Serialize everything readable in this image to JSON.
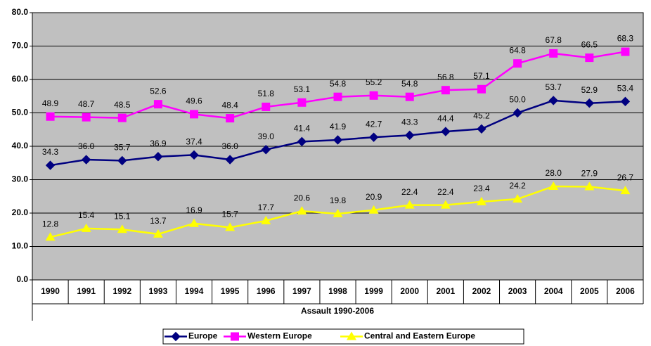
{
  "chart_data": {
    "type": "line",
    "x_label": "Assault 1990-2006",
    "categories": [
      "1990",
      "1991",
      "1992",
      "1993",
      "1994",
      "1995",
      "1996",
      "1997",
      "1998",
      "1999",
      "2000",
      "2001",
      "2002",
      "2003",
      "2004",
      "2005",
      "2006"
    ],
    "series": [
      {
        "name": "Europe",
        "color": "#000080",
        "marker": "diamond",
        "values": [
          34.3,
          36.0,
          35.7,
          36.9,
          37.4,
          36.0,
          39.0,
          41.4,
          41.9,
          42.7,
          43.3,
          44.4,
          45.2,
          50.0,
          53.7,
          52.9,
          53.4
        ],
        "value_labels": [
          "34.3",
          "36.0",
          "35.7",
          "36.9",
          "37.4",
          "36.0",
          "39.0",
          "41.4",
          "41.9",
          "42.7",
          "43.3",
          "44.4",
          "45.2",
          "50.0",
          "53.7",
          "52.9",
          "53.4"
        ]
      },
      {
        "name": "Western Europe",
        "color": "#ff00ff",
        "marker": "square",
        "values": [
          48.9,
          48.7,
          48.5,
          52.6,
          49.6,
          48.4,
          51.8,
          53.1,
          54.8,
          55.2,
          54.8,
          56.8,
          57.1,
          64.8,
          67.8,
          66.5,
          68.3
        ],
        "value_labels": [
          "48.9",
          "48.7",
          "48.5",
          "52.6",
          "49.6",
          "48.4",
          "51.8",
          "53.1",
          "54.8",
          "55.2",
          "54.8",
          "56.8",
          "57.1",
          "64.8",
          "67.8",
          "66.5",
          "68.3"
        ]
      },
      {
        "name": "Central and Eastern Europe",
        "color": "#ffff00",
        "marker": "triangle",
        "values": [
          12.8,
          15.4,
          15.1,
          13.7,
          16.9,
          15.7,
          17.7,
          20.6,
          19.8,
          20.9,
          22.4,
          22.4,
          23.4,
          24.2,
          28.0,
          27.9,
          26.7
        ],
        "value_labels": [
          "12.8",
          "15.4",
          "15.1",
          "13.7",
          "16.9",
          "15.7",
          "17.7",
          "20.6",
          "19.8",
          "20.9",
          "22.4",
          "22.4",
          "23.4",
          "24.2",
          "28.0",
          "27.9",
          "26.7"
        ]
      }
    ],
    "ylim": [
      0,
      80
    ],
    "yticks": [
      {
        "value": 0,
        "label": "0.0"
      },
      {
        "value": 10,
        "label": "10.0"
      },
      {
        "value": 20,
        "label": "20.0"
      },
      {
        "value": 30,
        "label": "30.0"
      },
      {
        "value": 40,
        "label": "40.0"
      },
      {
        "value": 50,
        "label": "50.0"
      },
      {
        "value": 60,
        "label": "60.0"
      },
      {
        "value": 70,
        "label": "70.0"
      },
      {
        "value": 80,
        "label": "80.0"
      }
    ],
    "grid": true,
    "legend": "bottom",
    "background": "#c0c0c0"
  }
}
